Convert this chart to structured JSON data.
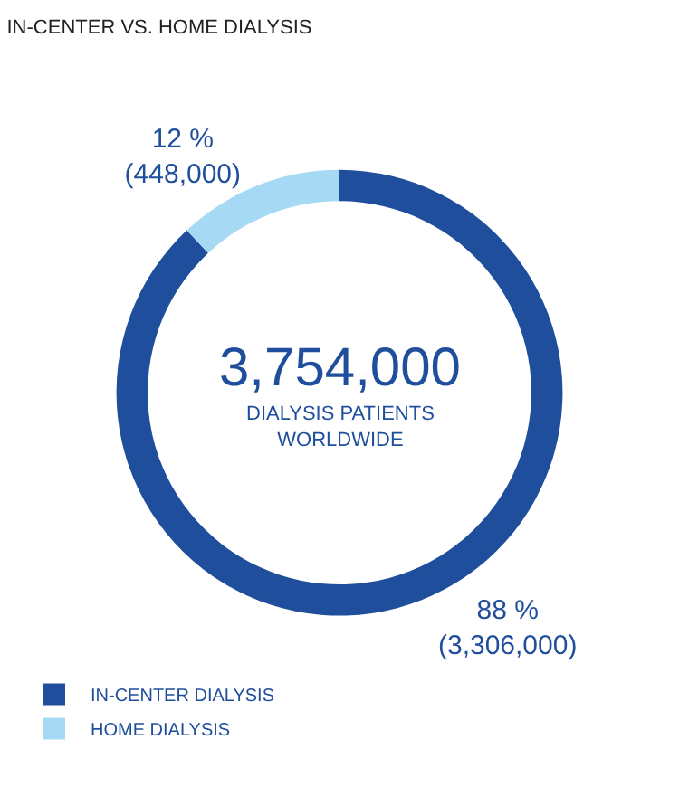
{
  "chart_data": {
    "type": "donut",
    "title": "IN-CENTER VS. HOME DIALYSIS",
    "categories": [
      "IN-CENTER DIALYSIS",
      "HOME DIALYSIS"
    ],
    "values": [
      88,
      12
    ],
    "value_labels": [
      "88 %\n(3,306,000)",
      "12 %\n(448,000)"
    ],
    "colors": [
      "#1f4e9c",
      "#a6daf4"
    ],
    "annotations": [
      "3,754,000",
      "DIALYSIS PATIENTS\nWORLDWIDE"
    ],
    "legend": "bottom left"
  }
}
